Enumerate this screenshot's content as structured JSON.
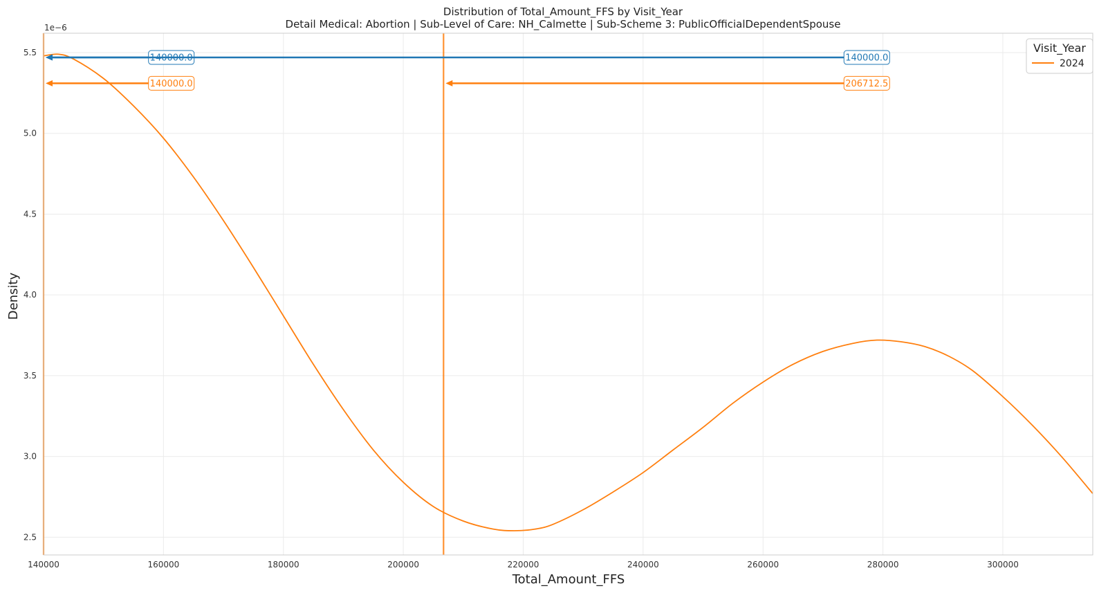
{
  "chart_data": {
    "type": "line",
    "title": "Distribution of Total_Amount_FFS by Visit_Year",
    "subtitle": "Detail Medical: Abortion | Sub-Level of Care: NH_Calmette | Sub-Scheme 3: PublicOfficialDependentSpouse",
    "xlabel": "Total_Amount_FFS",
    "ylabel": "Density",
    "y_offset_label": "1e−6",
    "xlim": [
      140000,
      315000
    ],
    "ylim": [
      2.39,
      5.62
    ],
    "x_ticks": [
      140000,
      160000,
      180000,
      200000,
      220000,
      240000,
      260000,
      280000,
      300000
    ],
    "y_ticks": [
      2.5,
      3.0,
      3.5,
      4.0,
      4.5,
      5.0,
      5.5
    ],
    "grid": true,
    "legend": {
      "title": "Visit_Year",
      "placement": "top-right",
      "entries": [
        "2024"
      ]
    },
    "colors": {
      "series_2024": "#ff7f0e",
      "blue": "#1f77b4"
    },
    "series": [
      {
        "name": "2024",
        "color": "#ff7f0e",
        "x": [
          140000,
          142500,
          145000,
          150000,
          155000,
          160000,
          165000,
          170000,
          175000,
          180000,
          185000,
          190000,
          195000,
          200000,
          205000,
          210000,
          215000,
          218500,
          222000,
          225000,
          230000,
          235000,
          240000,
          245000,
          250000,
          255000,
          260000,
          265000,
          270000,
          275000,
          279000,
          283000,
          287000,
          291000,
          295000,
          300000,
          305000,
          310000,
          315000
        ],
        "y": [
          5.48,
          5.49,
          5.46,
          5.34,
          5.17,
          4.97,
          4.73,
          4.46,
          4.17,
          3.87,
          3.57,
          3.29,
          3.04,
          2.84,
          2.69,
          2.6,
          2.55,
          2.54,
          2.55,
          2.58,
          2.67,
          2.78,
          2.9,
          3.04,
          3.18,
          3.33,
          3.46,
          3.57,
          3.65,
          3.7,
          3.72,
          3.71,
          3.68,
          3.62,
          3.53,
          3.37,
          3.19,
          2.99,
          2.77
        ]
      }
    ],
    "vertical_lines": [
      {
        "x": 206712.5,
        "color": "#ff7f0e"
      },
      {
        "x": 140000,
        "color": "#ff7f0e"
      }
    ],
    "annotations": [
      {
        "label": "140000.0",
        "target_x": 140000,
        "y": 5.47,
        "label_x": 157500,
        "color": "#1f77b4"
      },
      {
        "label": "140000.0",
        "target_x": 140000,
        "y": 5.47,
        "label_x": 273500,
        "color": "#1f77b4"
      },
      {
        "label": "140000.0",
        "target_x": 140000,
        "y": 5.31,
        "label_x": 157500,
        "color": "#ff7f0e"
      },
      {
        "label": "206712.5",
        "target_x": 206712.5,
        "y": 5.31,
        "label_x": 273500,
        "color": "#ff7f0e"
      }
    ]
  }
}
